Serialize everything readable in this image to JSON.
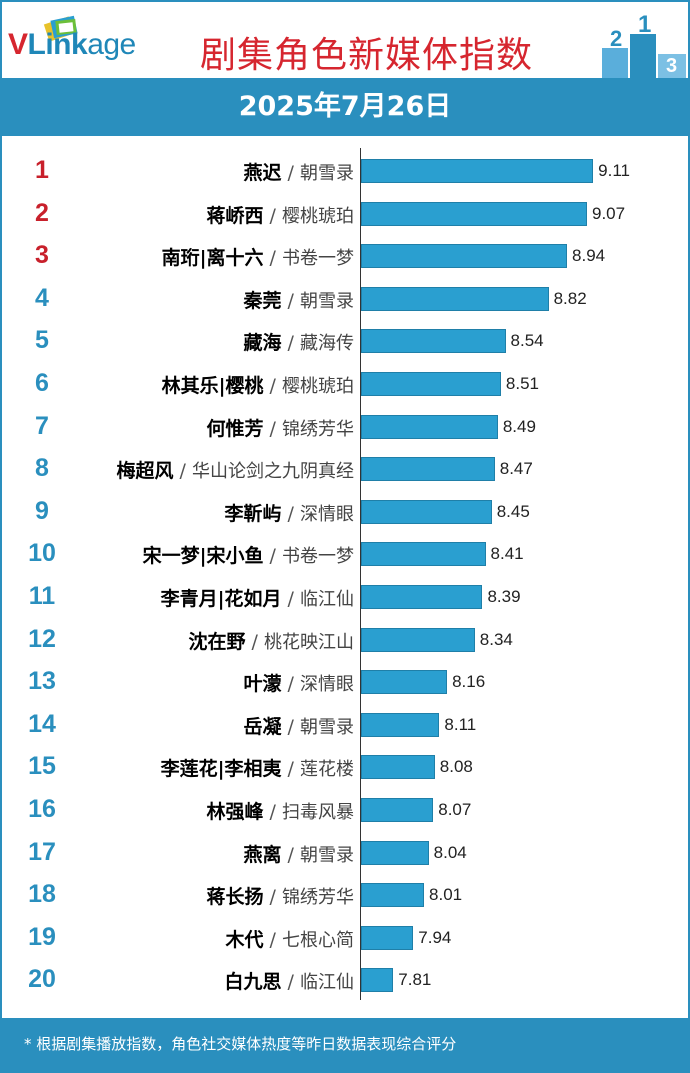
{
  "header": {
    "logo_v": "V",
    "logo_rest": "Link",
    "logo_age": "age",
    "title": "剧集角色新媒体指数",
    "podium_digits": [
      "2",
      "1",
      "3"
    ]
  },
  "date": "2025年7月26日",
  "footer": {
    "note": "* 根据剧集播放指数，角色社交媒体热度等昨日数据表现综合评分"
  },
  "colors": {
    "brand_blue": "#2a8fbe",
    "bar_blue": "#2a9fd0",
    "top_rank_red": "#c8202b"
  },
  "chart_data": {
    "type": "bar",
    "orientation": "horizontal",
    "title": "剧集角色新媒体指数",
    "subtitle": "2025年7月26日",
    "xlim": [
      7.6,
      9.2
    ],
    "items": [
      {
        "rank": "1",
        "character": "燕迟",
        "show": "朝雪录",
        "value": 9.11
      },
      {
        "rank": "2",
        "character": "蒋峤西",
        "show": "樱桃琥珀",
        "value": 9.07
      },
      {
        "rank": "3",
        "character": "南珩|离十六",
        "show": "书卷一梦",
        "value": 8.94
      },
      {
        "rank": "4",
        "character": "秦莞",
        "show": "朝雪录",
        "value": 8.82
      },
      {
        "rank": "5",
        "character": "藏海",
        "show": "藏海传",
        "value": 8.54
      },
      {
        "rank": "6",
        "character": "林其乐|樱桃",
        "show": "樱桃琥珀",
        "value": 8.51
      },
      {
        "rank": "7",
        "character": "何惟芳",
        "show": "锦绣芳华",
        "value": 8.49
      },
      {
        "rank": "8",
        "character": "梅超风",
        "show": "华山论剑之九阴真经",
        "value": 8.47
      },
      {
        "rank": "9",
        "character": "李靳屿",
        "show": "深情眼",
        "value": 8.45
      },
      {
        "rank": "10",
        "character": "宋一梦|宋小鱼",
        "show": "书卷一梦",
        "value": 8.41
      },
      {
        "rank": "11",
        "character": "李青月|花如月",
        "show": "临江仙",
        "value": 8.39
      },
      {
        "rank": "12",
        "character": "沈在野",
        "show": "桃花映江山",
        "value": 8.34
      },
      {
        "rank": "13",
        "character": "叶濛",
        "show": "深情眼",
        "value": 8.16
      },
      {
        "rank": "14",
        "character": "岳凝",
        "show": "朝雪录",
        "value": 8.11
      },
      {
        "rank": "15",
        "character": "李莲花|李相夷",
        "show": "莲花楼",
        "value": 8.08
      },
      {
        "rank": "16",
        "character": "林强峰",
        "show": "扫毒风暴",
        "value": 8.07
      },
      {
        "rank": "17",
        "character": "燕离",
        "show": "朝雪录",
        "value": 8.04
      },
      {
        "rank": "18",
        "character": "蒋长扬",
        "show": "锦绣芳华",
        "value": 8.01
      },
      {
        "rank": "19",
        "character": "木代",
        "show": "七根心简",
        "value": 7.94
      },
      {
        "rank": "20",
        "character": "白九思",
        "show": "临江仙",
        "value": 7.81
      }
    ]
  }
}
